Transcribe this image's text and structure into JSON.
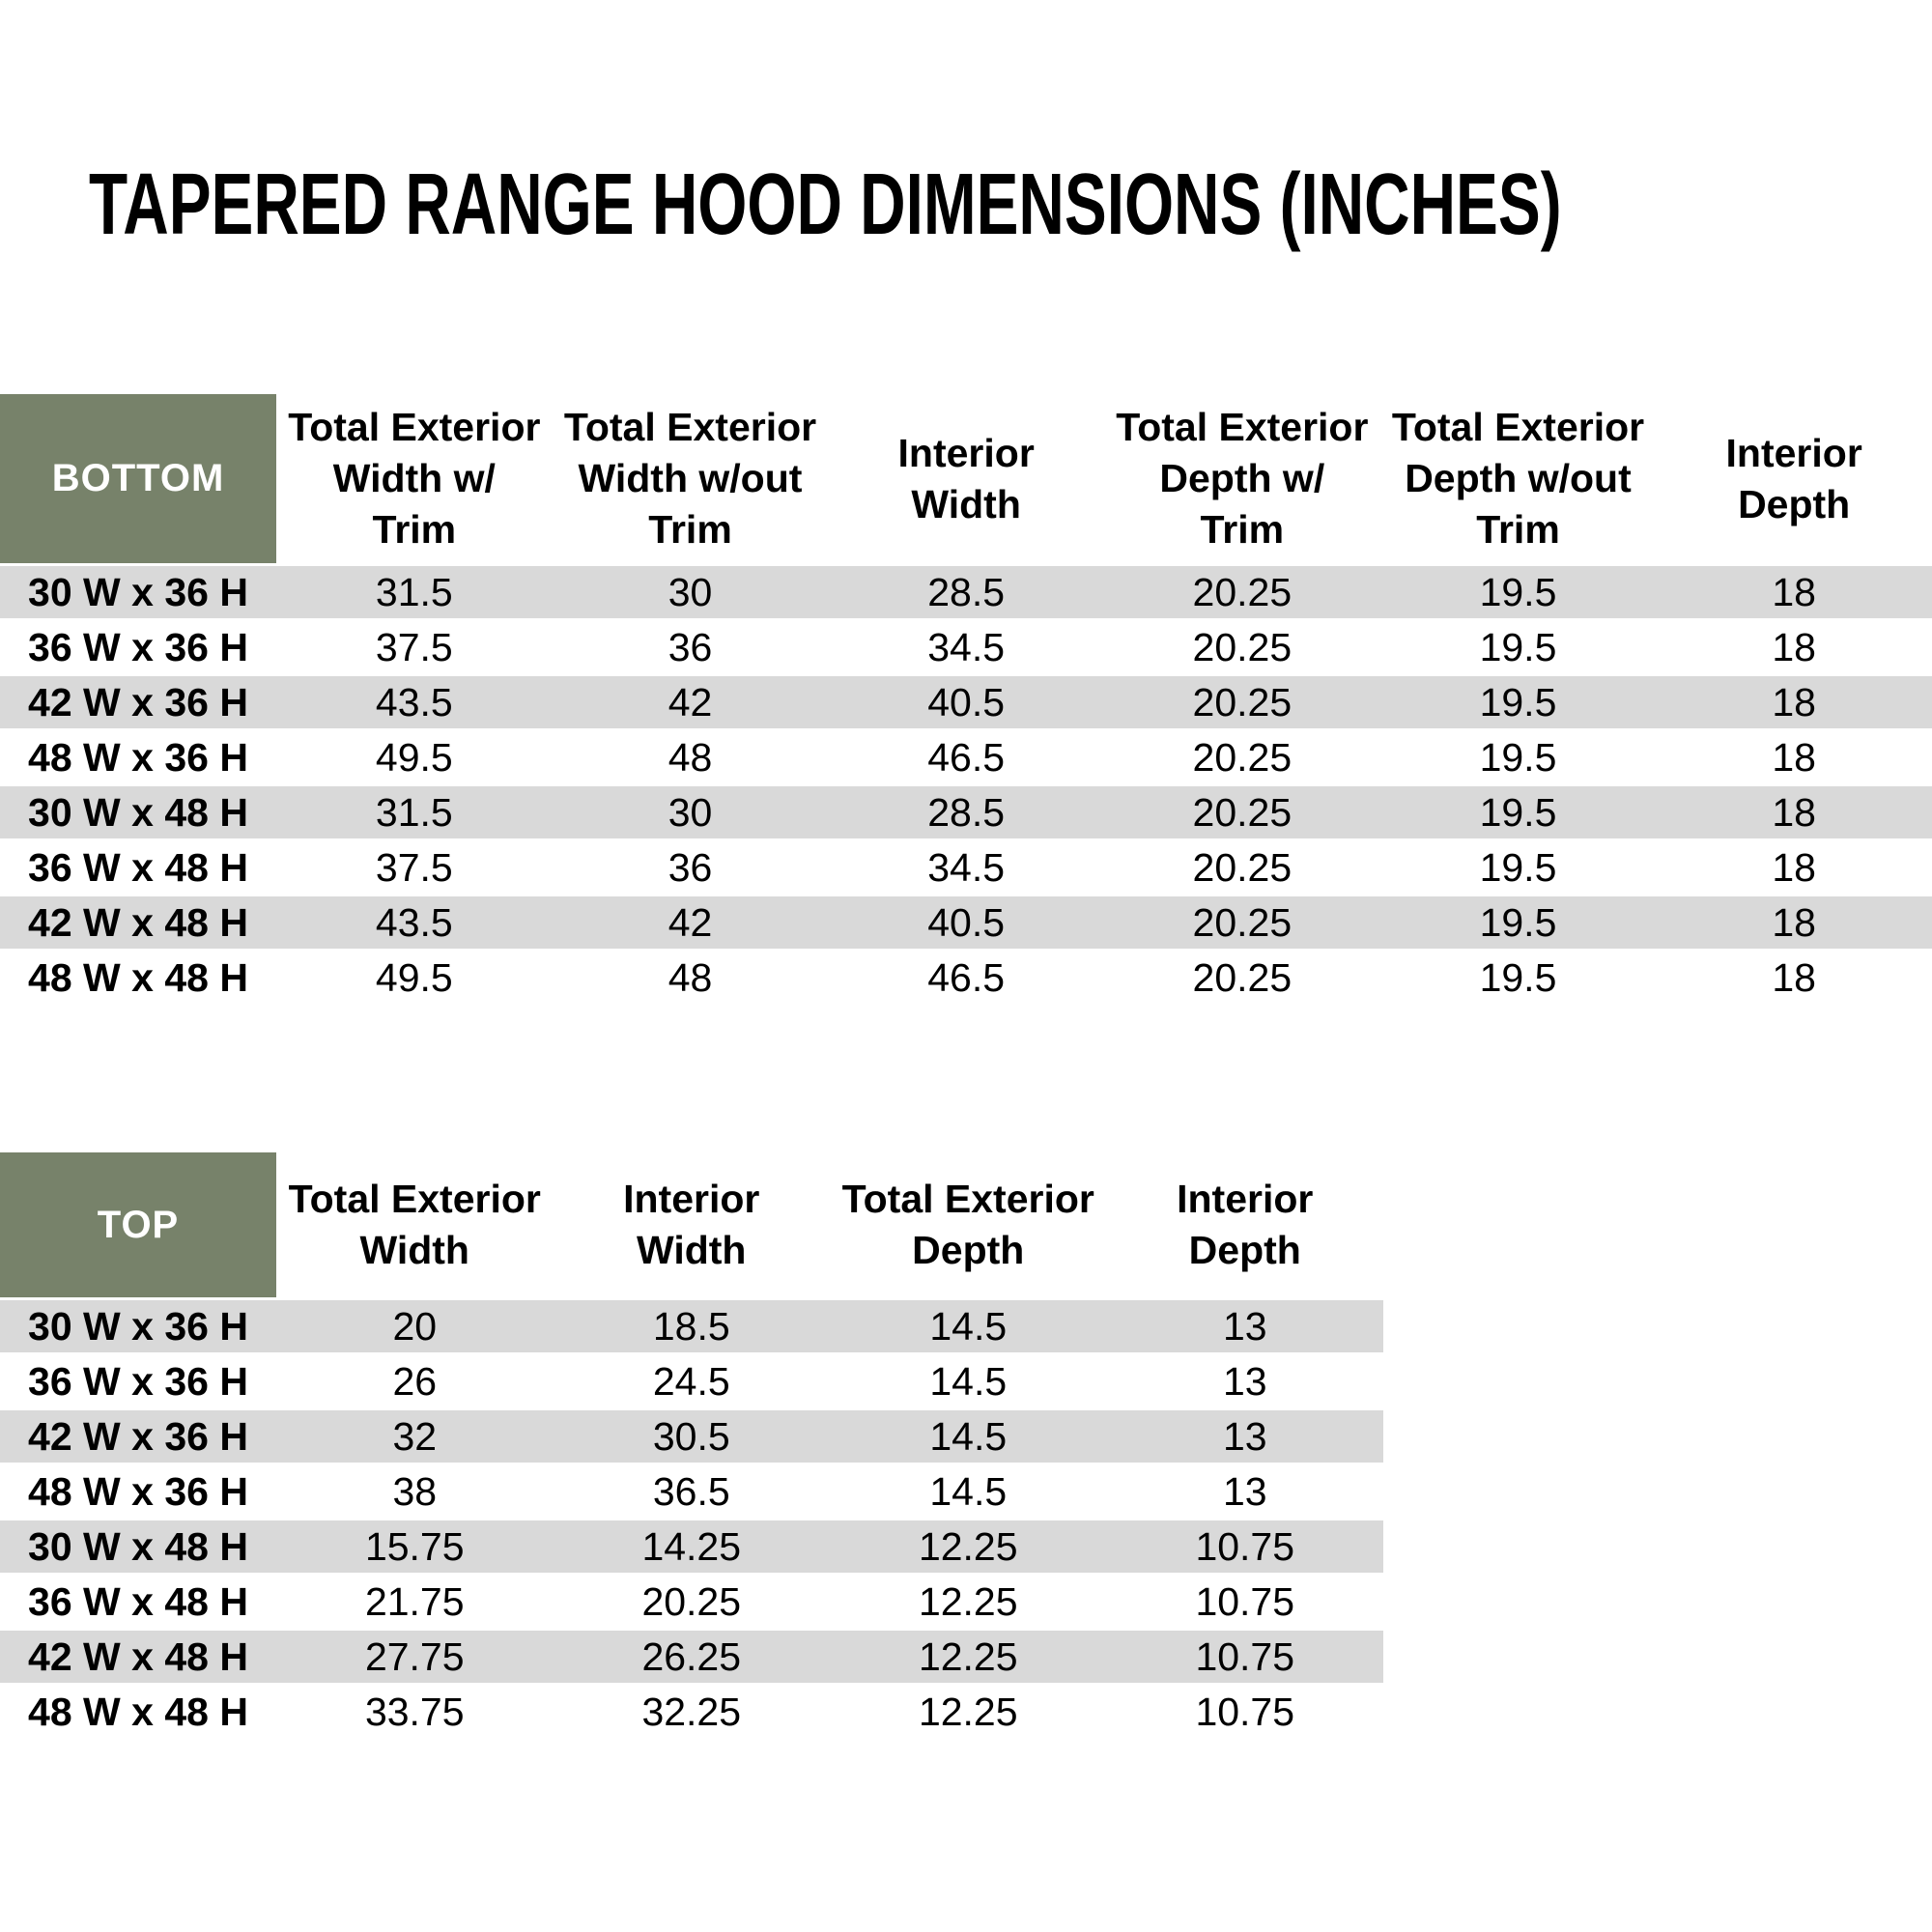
{
  "title": "TAPERED RANGE HOOD DIMENSIONS (INCHES)",
  "colors": {
    "header_green": "#77826A",
    "row_stripe_gray": "#D9D9D9",
    "text_black": "#000000",
    "corner_text_white": "#FFFFFF"
  },
  "tables": [
    {
      "name": "BOTTOM",
      "columns": [
        "Total Exterior\nWidth w/\nTrim",
        "Total Exterior\nWidth w/out\nTrim",
        "Interior\nWidth",
        "Total Exterior\nDepth w/\nTrim",
        "Total Exterior\nDepth w/out\nTrim",
        "Interior\nDepth"
      ],
      "rows": [
        {
          "label": "30 W x 36 H",
          "values": [
            "31.5",
            "30",
            "28.5",
            "20.25",
            "19.5",
            "18"
          ]
        },
        {
          "label": "36 W x 36 H",
          "values": [
            "37.5",
            "36",
            "34.5",
            "20.25",
            "19.5",
            "18"
          ]
        },
        {
          "label": "42 W x 36 H",
          "values": [
            "43.5",
            "42",
            "40.5",
            "20.25",
            "19.5",
            "18"
          ]
        },
        {
          "label": "48 W x 36 H",
          "values": [
            "49.5",
            "48",
            "46.5",
            "20.25",
            "19.5",
            "18"
          ]
        },
        {
          "label": "30 W x 48 H",
          "values": [
            "31.5",
            "30",
            "28.5",
            "20.25",
            "19.5",
            "18"
          ]
        },
        {
          "label": "36 W x 48 H",
          "values": [
            "37.5",
            "36",
            "34.5",
            "20.25",
            "19.5",
            "18"
          ]
        },
        {
          "label": "42 W x 48 H",
          "values": [
            "43.5",
            "42",
            "40.5",
            "20.25",
            "19.5",
            "18"
          ]
        },
        {
          "label": "48 W x 48 H",
          "values": [
            "49.5",
            "48",
            "46.5",
            "20.25",
            "19.5",
            "18"
          ]
        }
      ]
    },
    {
      "name": "TOP",
      "columns": [
        "Total Exterior\nWidth",
        "Interior\nWidth",
        "Total Exterior\nDepth",
        "Interior\nDepth"
      ],
      "rows": [
        {
          "label": "30 W x 36 H",
          "values": [
            "20",
            "18.5",
            "14.5",
            "13"
          ]
        },
        {
          "label": "36 W x 36 H",
          "values": [
            "26",
            "24.5",
            "14.5",
            "13"
          ]
        },
        {
          "label": "42 W x 36 H",
          "values": [
            "32",
            "30.5",
            "14.5",
            "13"
          ]
        },
        {
          "label": "48 W x 36 H",
          "values": [
            "38",
            "36.5",
            "14.5",
            "13"
          ]
        },
        {
          "label": "30 W x 48 H",
          "values": [
            "15.75",
            "14.25",
            "12.25",
            "10.75"
          ]
        },
        {
          "label": "36 W x 48 H",
          "values": [
            "21.75",
            "20.25",
            "12.25",
            "10.75"
          ]
        },
        {
          "label": "42 W x 48 H",
          "values": [
            "27.75",
            "26.25",
            "12.25",
            "10.75"
          ]
        },
        {
          "label": "48 W x 48 H",
          "values": [
            "33.75",
            "32.25",
            "12.25",
            "10.75"
          ]
        }
      ]
    }
  ]
}
